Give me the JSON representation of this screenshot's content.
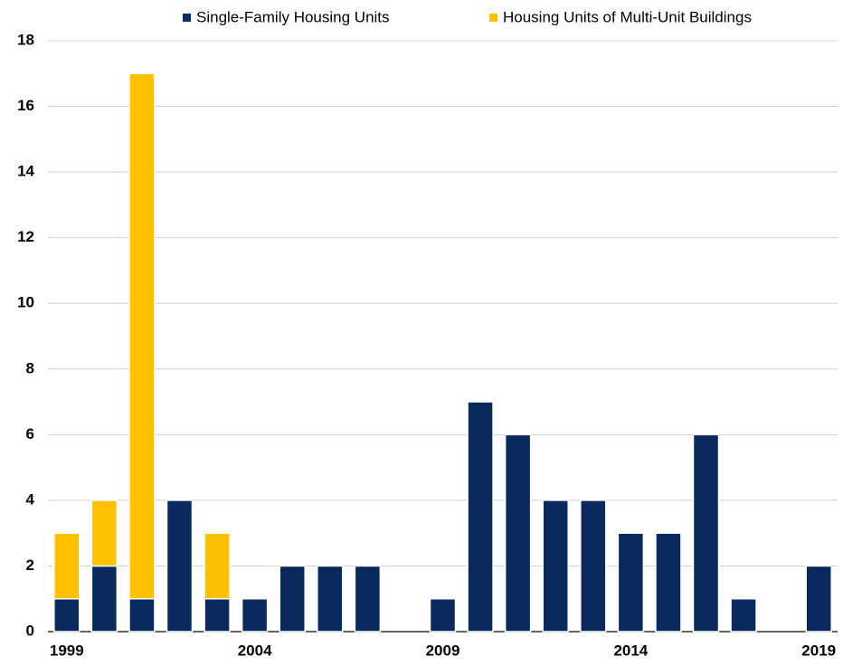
{
  "chart_data": {
    "type": "stacked-bar",
    "categories": [
      "1999",
      null,
      null,
      null,
      null,
      "2004",
      null,
      null,
      null,
      null,
      "2009",
      null,
      null,
      null,
      null,
      "2014",
      null,
      null,
      null,
      null,
      "2019"
    ],
    "series": [
      {
        "name": "Single-Family Housing Units",
        "color": "#0a2a5e",
        "values": [
          1,
          2,
          1,
          4,
          1,
          1,
          2,
          2,
          2,
          0,
          1,
          7,
          6,
          4,
          4,
          3,
          3,
          6,
          1,
          0,
          2
        ]
      },
      {
        "name": "Housing Units of Multi-Unit Buildings",
        "color": "#ffc000",
        "values": [
          2,
          2,
          16,
          0,
          2,
          0,
          0,
          0,
          0,
          0,
          0,
          0,
          0,
          0,
          0,
          0,
          0,
          0,
          0,
          0,
          0
        ]
      }
    ],
    "ylim": [
      0,
      18
    ],
    "yticks": [
      0,
      2,
      4,
      6,
      8,
      10,
      12,
      14,
      16,
      18
    ],
    "grid": true
  }
}
